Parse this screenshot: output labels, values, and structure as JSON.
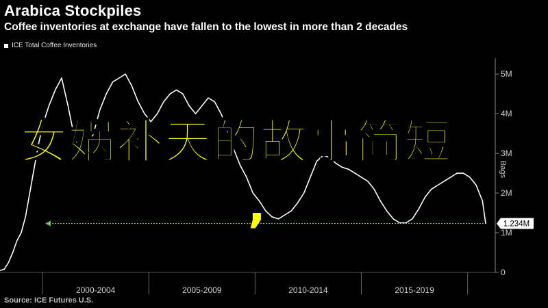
{
  "header": {
    "title": "Arabica Stockpiles",
    "subtitle": "Coffee inventories at exchange have fallen to the lowest in more than 2 decades"
  },
  "legend": {
    "series_label": "ICE Total Coffee Inventories"
  },
  "source": "Source: ICE Futures U.S.",
  "overlay": {
    "text": "女娲补天的故事简短",
    "comma": ","
  },
  "colors": {
    "background": "#000000",
    "line": "#ffffff",
    "reference": "#7cc04a",
    "overlay": "#ffff00",
    "label_box": "#ffffff"
  },
  "chart_data": {
    "type": "line",
    "title": "Arabica Stockpiles",
    "subtitle": "Coffee inventories at exchange have fallen to the lowest in more than 2 decades",
    "ylabel": "Bags",
    "y_axis_position": "right",
    "ylim": [
      0,
      5.4
    ],
    "y_ticks": [
      {
        "value": 0,
        "label": "0"
      },
      {
        "value": 1,
        "label": "1M"
      },
      {
        "value": 2,
        "label": "2M"
      },
      {
        "value": 3,
        "label": "3M"
      },
      {
        "value": 4,
        "label": "4M"
      },
      {
        "value": 5,
        "label": "5M"
      }
    ],
    "xlim": [
      1998.0,
      2021.3
    ],
    "x_groups": [
      {
        "label": "2000-2004",
        "start": 2000,
        "end": 2005
      },
      {
        "label": "2005-2009",
        "start": 2005,
        "end": 2010
      },
      {
        "label": "2010-2014",
        "start": 2010,
        "end": 2015
      },
      {
        "label": "2015-2019",
        "start": 2015,
        "end": 2020
      }
    ],
    "grid": false,
    "legend_position": "top-left",
    "series": [
      {
        "name": "ICE Total Coffee Inventories",
        "x": [
          1998.0,
          1998.2,
          1998.4,
          1998.6,
          1998.8,
          1999.0,
          1999.2,
          1999.4,
          1999.6,
          1999.8,
          2000.0,
          2000.3,
          2000.6,
          2000.9,
          2001.2,
          2001.5,
          2001.8,
          2002.1,
          2002.4,
          2002.7,
          2003.0,
          2003.3,
          2003.6,
          2003.9,
          2004.2,
          2004.5,
          2004.8,
          2005.1,
          2005.4,
          2005.7,
          2006.0,
          2006.3,
          2006.6,
          2006.9,
          2007.2,
          2007.5,
          2007.8,
          2008.1,
          2008.4,
          2008.7,
          2009.0,
          2009.3,
          2009.6,
          2009.9,
          2010.2,
          2010.5,
          2010.8,
          2011.1,
          2011.4,
          2011.7,
          2012.0,
          2012.3,
          2012.6,
          2012.9,
          2013.2,
          2013.5,
          2013.8,
          2014.1,
          2014.4,
          2014.7,
          2015.0,
          2015.3,
          2015.6,
          2015.9,
          2016.2,
          2016.5,
          2016.8,
          2017.1,
          2017.4,
          2017.7,
          2018.0,
          2018.3,
          2018.6,
          2018.9,
          2019.2,
          2019.5,
          2019.8,
          2020.1,
          2020.4,
          2020.7,
          2020.85
        ],
        "values": [
          0.05,
          0.08,
          0.25,
          0.5,
          0.8,
          1.0,
          1.4,
          2.0,
          2.6,
          3.2,
          3.7,
          4.2,
          4.6,
          4.9,
          4.2,
          3.4,
          3.0,
          3.1,
          3.5,
          4.1,
          4.5,
          4.8,
          4.9,
          5.0,
          4.7,
          4.3,
          4.0,
          3.8,
          4.0,
          4.3,
          4.5,
          4.6,
          4.5,
          4.2,
          4.0,
          4.2,
          4.4,
          4.3,
          4.0,
          3.6,
          3.1,
          2.7,
          2.4,
          2.0,
          1.8,
          1.55,
          1.4,
          1.35,
          1.45,
          1.55,
          1.75,
          2.0,
          2.4,
          2.8,
          2.95,
          2.9,
          2.75,
          2.65,
          2.6,
          2.5,
          2.4,
          2.3,
          2.1,
          1.8,
          1.55,
          1.35,
          1.25,
          1.25,
          1.35,
          1.6,
          1.9,
          2.1,
          2.2,
          2.3,
          2.4,
          2.5,
          2.5,
          2.4,
          2.2,
          1.8,
          1.234
        ]
      }
    ],
    "reference_line": {
      "value": 1.234,
      "label": "1.234M",
      "style": "dotted-arrow"
    }
  }
}
